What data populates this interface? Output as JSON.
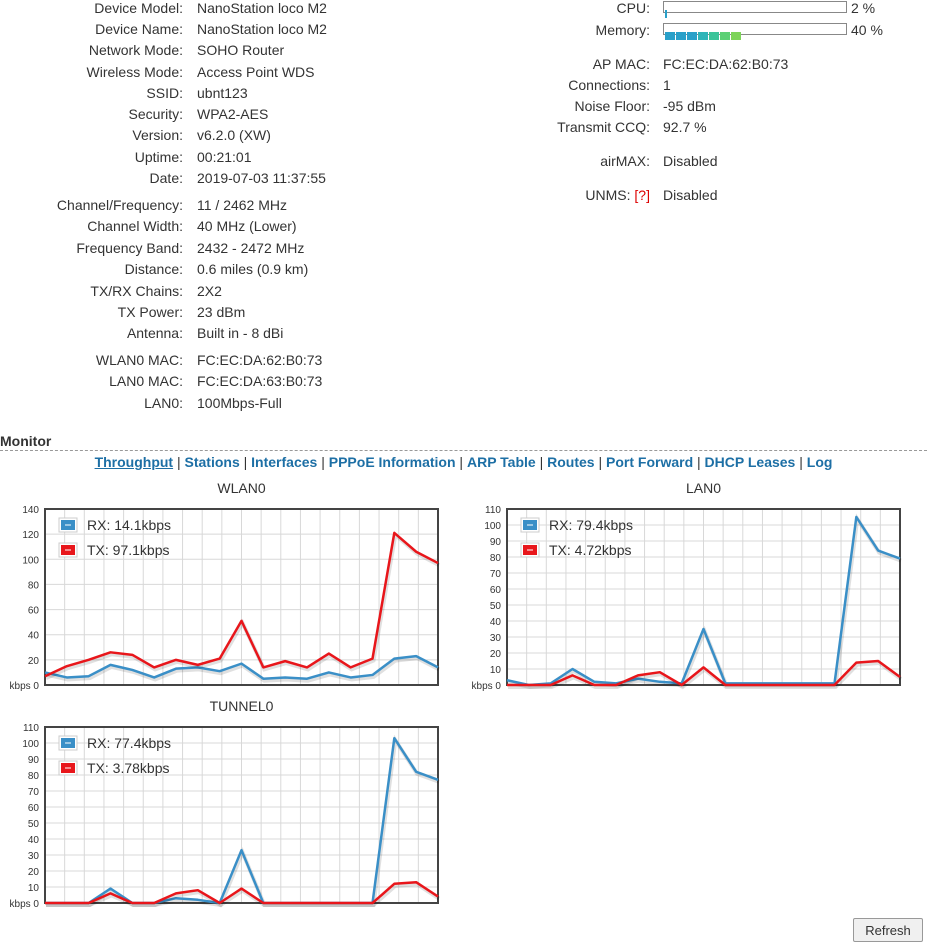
{
  "status_left": [
    {
      "label": "Device Model:",
      "value": "NanoStation loco M2"
    },
    {
      "label": "Device Name:",
      "value": "NanoStation loco M2"
    },
    {
      "label": "Network Mode:",
      "value": "SOHO Router"
    },
    {
      "label": "Wireless Mode:",
      "value": "Access Point WDS"
    },
    {
      "label": "SSID:",
      "value": "ubnt123"
    },
    {
      "label": "Security:",
      "value": "WPA2-AES"
    },
    {
      "label": "Version:",
      "value": "v6.2.0 (XW)"
    },
    {
      "label": "Uptime:",
      "value": "00:21:01"
    },
    {
      "label": "Date:",
      "value": "2019-07-03 11:37:55"
    },
    {
      "label": "Channel/Frequency:",
      "value": "11 / 2462 MHz"
    },
    {
      "label": "Channel Width:",
      "value": "40 MHz (Lower)"
    },
    {
      "label": "Frequency Band:",
      "value": "2432 - 2472 MHz"
    },
    {
      "label": "Distance:",
      "value": "0.6 miles (0.9 km)"
    },
    {
      "label": "TX/RX Chains:",
      "value": "2X2"
    },
    {
      "label": "TX Power:",
      "value": "23 dBm"
    },
    {
      "label": "Antenna:",
      "value": "Built in - 8 dBi"
    },
    {
      "label": "WLAN0 MAC:",
      "value": "FC:EC:DA:62:B0:73"
    },
    {
      "label": "LAN0 MAC:",
      "value": "FC:EC:DA:63:B0:73"
    },
    {
      "label": "LAN0:",
      "value": "100Mbps-Full"
    }
  ],
  "status_right": {
    "cpu_label": "CPU:",
    "cpu_value": "2 %",
    "cpu_fraction": 0.02,
    "memory_label": "Memory:",
    "memory_value": "40 %",
    "memory_fraction": 0.4,
    "rows": [
      {
        "label": "AP MAC:",
        "value": "FC:EC:DA:62:B0:73"
      },
      {
        "label": "Connections:",
        "value": "1"
      },
      {
        "label": "Noise Floor:",
        "value": "-95 dBm"
      },
      {
        "label": "Transmit CCQ:",
        "value": "92.7 %"
      },
      {
        "label": "airMAX:",
        "value": "Disabled"
      }
    ],
    "unms_label": "UNMS:",
    "unms_help": "[?]",
    "unms_value": "Disabled"
  },
  "monitor": {
    "title": "Monitor",
    "tabs": [
      "Throughput",
      "Stations",
      "Interfaces",
      "PPPoE Information",
      "ARP Table",
      "Routes",
      "Port Forward",
      "DHCP Leases",
      "Log"
    ],
    "active_tab": "Throughput",
    "refresh_label": "Refresh"
  },
  "chart_data": [
    {
      "type": "line",
      "title": "WLAN0",
      "unit_label": "kbps",
      "ylim": [
        0,
        140
      ],
      "yticks": [
        0,
        20,
        40,
        60,
        80,
        100,
        120,
        140
      ],
      "grid": true,
      "legend": "top-left",
      "series": [
        {
          "name": "RX: 14.1kbps",
          "color": "#3a8fc7",
          "values": [
            10,
            6,
            7,
            16,
            12,
            6,
            13,
            14,
            11,
            17,
            5,
            6,
            5,
            10,
            6,
            8,
            21,
            23,
            14
          ]
        },
        {
          "name": "TX: 97.1kbps",
          "color": "#e8161b",
          "values": [
            7,
            15,
            20,
            26,
            24,
            14,
            20,
            16,
            21,
            51,
            14,
            19,
            14,
            25,
            14,
            21,
            121,
            106,
            97
          ]
        }
      ]
    },
    {
      "type": "line",
      "title": "LAN0",
      "unit_label": "kbps",
      "ylim": [
        0,
        110
      ],
      "yticks": [
        0,
        10,
        20,
        30,
        40,
        50,
        60,
        70,
        80,
        90,
        100,
        110
      ],
      "grid": true,
      "legend": "top-left",
      "series": [
        {
          "name": "RX: 79.4kbps",
          "color": "#3a8fc7",
          "values": [
            3,
            0,
            1,
            10,
            2,
            1,
            4,
            2,
            1,
            35,
            1,
            1,
            1,
            1,
            1,
            1,
            105,
            84,
            79
          ]
        },
        {
          "name": "TX: 4.72kbps",
          "color": "#e8161b",
          "values": [
            0,
            0,
            0,
            6,
            0,
            0,
            6,
            8,
            0,
            11,
            0,
            0,
            0,
            0,
            0,
            0,
            14,
            15,
            5
          ]
        }
      ]
    },
    {
      "type": "line",
      "title": "TUNNEL0",
      "unit_label": "kbps",
      "ylim": [
        0,
        110
      ],
      "yticks": [
        0,
        10,
        20,
        30,
        40,
        50,
        60,
        70,
        80,
        90,
        100,
        110
      ],
      "grid": true,
      "legend": "top-left",
      "series": [
        {
          "name": "RX: 77.4kbps",
          "color": "#3a8fc7",
          "values": [
            0,
            0,
            0,
            9,
            0,
            0,
            3,
            2,
            0,
            33,
            0,
            0,
            0,
            0,
            0,
            0,
            103,
            82,
            77
          ]
        },
        {
          "name": "TX: 3.78kbps",
          "color": "#e8161b",
          "values": [
            0,
            0,
            0,
            6,
            0,
            0,
            6,
            8,
            0,
            9,
            0,
            0,
            0,
            0,
            0,
            0,
            12,
            13,
            4
          ]
        }
      ]
    }
  ]
}
